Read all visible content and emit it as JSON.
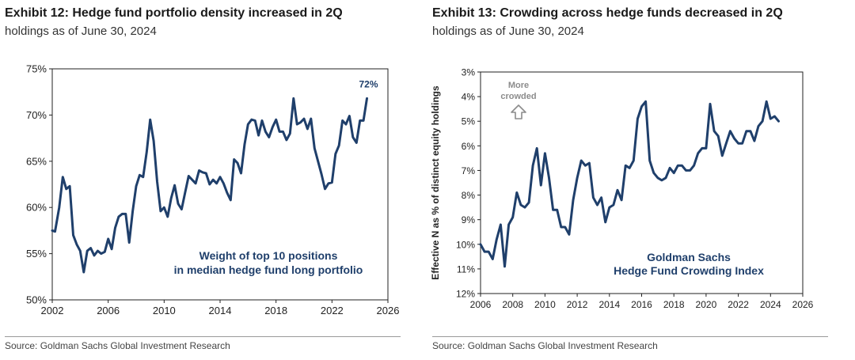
{
  "colors": {
    "line": "#1f3f6b",
    "annotation": "#1f3f6b",
    "hint": "#8c8c8c",
    "axis": "#222222"
  },
  "exhibits": [
    {
      "title": "Exhibit 12: Hedge fund portfolio density increased in 2Q",
      "subtitle": "holdings as of June 30, 2024",
      "source": "Source: Goldman Sachs Global Investment Research"
    },
    {
      "title": "Exhibit 13: Crowding across hedge funds decreased in 2Q",
      "subtitle": "holdings as of June 30, 2024",
      "source": "Source: Goldman Sachs Global Investment Research"
    }
  ],
  "chart_data": [
    {
      "type": "line",
      "xlim": [
        2002,
        2026
      ],
      "x_ticks": [
        2002,
        2006,
        2010,
        2014,
        2018,
        2022,
        2026
      ],
      "x_tick_labels": [
        "2002",
        "2006",
        "2010",
        "2014",
        "2018",
        "2022",
        "2026"
      ],
      "ylim": [
        50,
        75
      ],
      "y_ticks": [
        50,
        55,
        60,
        65,
        70,
        75
      ],
      "y_tick_labels": [
        "50%",
        "55%",
        "60%",
        "65%",
        "70%",
        "75%"
      ],
      "ylabel": "",
      "end_label": "72%",
      "annotation": [
        "Weight of top 10 positions",
        "in median hedge fund long portfolio"
      ],
      "series": [
        {
          "x": [
            2002.0,
            2002.2,
            2002.5,
            2002.75,
            2003.0,
            2003.25,
            2003.5,
            2003.75,
            2004.0,
            2004.25,
            2004.5,
            2004.75,
            2005.0,
            2005.25,
            2005.5,
            2005.75,
            2006.0,
            2006.25,
            2006.5,
            2006.75,
            2007.0,
            2007.25,
            2007.5,
            2007.75,
            2008.0,
            2008.25,
            2008.5,
            2008.75,
            2009.0,
            2009.25,
            2009.5,
            2009.75,
            2010.0,
            2010.25,
            2010.5,
            2010.75,
            2011.0,
            2011.25,
            2011.5,
            2011.75,
            2012.0,
            2012.25,
            2012.5,
            2012.75,
            2013.0,
            2013.25,
            2013.5,
            2013.75,
            2014.0,
            2014.25,
            2014.5,
            2014.75,
            2015.0,
            2015.25,
            2015.5,
            2015.75,
            2016.0,
            2016.25,
            2016.5,
            2016.75,
            2017.0,
            2017.25,
            2017.5,
            2017.75,
            2018.0,
            2018.25,
            2018.5,
            2018.75,
            2019.0,
            2019.25,
            2019.5,
            2019.75,
            2020.0,
            2020.25,
            2020.5,
            2020.75,
            2021.0,
            2021.25,
            2021.5,
            2021.75,
            2022.0,
            2022.25,
            2022.5,
            2022.75,
            2023.0,
            2023.25,
            2023.5,
            2023.75,
            2024.0,
            2024.25,
            2024.5
          ],
          "values": [
            57.5,
            57.4,
            60.0,
            63.3,
            62.0,
            62.3,
            57.0,
            56.0,
            55.3,
            53.0,
            55.3,
            55.6,
            54.8,
            55.3,
            55.0,
            55.2,
            56.6,
            55.5,
            57.8,
            59.0,
            59.3,
            59.3,
            56.2,
            59.6,
            62.3,
            63.5,
            63.3,
            66.0,
            69.5,
            67.2,
            62.8,
            59.6,
            60.0,
            59.0,
            61.0,
            62.4,
            60.4,
            59.8,
            61.6,
            63.4,
            63.0,
            62.6,
            64.0,
            63.8,
            63.7,
            62.5,
            63.0,
            62.6,
            63.3,
            62.6,
            61.6,
            60.8,
            65.2,
            64.8,
            63.7,
            66.8,
            69.0,
            69.5,
            69.4,
            67.8,
            69.4,
            68.2,
            67.6,
            68.7,
            69.5,
            68.2,
            68.2,
            67.3,
            68.0,
            71.8,
            69.0,
            69.2,
            69.6,
            68.5,
            69.6,
            66.4,
            65.0,
            63.6,
            62.0,
            62.6,
            62.7,
            65.8,
            66.7,
            69.4,
            69.0,
            69.9,
            67.6,
            67.0,
            69.4,
            69.4,
            71.8
          ]
        }
      ]
    },
    {
      "type": "line",
      "xlim": [
        2006,
        2026
      ],
      "x_ticks": [
        2006,
        2008,
        2010,
        2012,
        2014,
        2016,
        2018,
        2020,
        2022,
        2024,
        2026
      ],
      "x_tick_labels": [
        "2006",
        "2008",
        "2010",
        "2012",
        "2014",
        "2016",
        "2018",
        "2020",
        "2022",
        "2024",
        "2026"
      ],
      "ylim": [
        3,
        12
      ],
      "y_inverted": true,
      "y_ticks": [
        3,
        4,
        5,
        6,
        7,
        8,
        9,
        10,
        11,
        12
      ],
      "y_tick_labels": [
        "3%",
        "4%",
        "5%",
        "6%",
        "7%",
        "8%",
        "9%",
        "10%",
        "11%",
        "12%"
      ],
      "ylabel": "Effective N as % of distinct equity holdings",
      "hint": [
        "More",
        "crowded"
      ],
      "annotation": [
        "Goldman Sachs",
        "Hedge Fund Crowding Index"
      ],
      "series": [
        {
          "x": [
            2006.0,
            2006.25,
            2006.5,
            2006.75,
            2007.0,
            2007.25,
            2007.5,
            2007.75,
            2008.0,
            2008.25,
            2008.5,
            2008.75,
            2009.0,
            2009.25,
            2009.5,
            2009.75,
            2010.0,
            2010.25,
            2010.5,
            2010.75,
            2011.0,
            2011.25,
            2011.5,
            2011.75,
            2012.0,
            2012.25,
            2012.5,
            2012.75,
            2013.0,
            2013.25,
            2013.5,
            2013.75,
            2014.0,
            2014.25,
            2014.5,
            2014.75,
            2015.0,
            2015.25,
            2015.5,
            2015.75,
            2016.0,
            2016.25,
            2016.5,
            2016.75,
            2017.0,
            2017.25,
            2017.5,
            2017.75,
            2018.0,
            2018.25,
            2018.5,
            2018.75,
            2019.0,
            2019.25,
            2019.5,
            2019.75,
            2020.0,
            2020.25,
            2020.5,
            2020.75,
            2021.0,
            2021.25,
            2021.5,
            2021.75,
            2022.0,
            2022.25,
            2022.5,
            2022.75,
            2023.0,
            2023.25,
            2023.5,
            2023.75,
            2024.0,
            2024.25,
            2024.5
          ],
          "values": [
            10.0,
            10.3,
            10.3,
            10.6,
            9.8,
            9.2,
            10.9,
            9.2,
            8.9,
            7.9,
            8.4,
            8.5,
            8.3,
            6.8,
            6.1,
            7.6,
            6.3,
            7.3,
            8.6,
            8.6,
            9.3,
            9.3,
            9.6,
            8.2,
            7.3,
            6.6,
            6.8,
            6.7,
            8.1,
            8.4,
            8.1,
            9.1,
            8.5,
            8.4,
            7.8,
            8.2,
            6.8,
            6.9,
            6.6,
            4.9,
            4.4,
            4.2,
            6.6,
            7.1,
            7.3,
            7.4,
            7.3,
            6.9,
            7.1,
            6.8,
            6.8,
            7.0,
            7.0,
            6.8,
            6.3,
            6.1,
            6.1,
            4.3,
            5.4,
            5.6,
            6.4,
            5.9,
            5.4,
            5.7,
            5.9,
            5.9,
            5.4,
            5.4,
            5.8,
            5.2,
            5.0,
            4.2,
            4.9,
            4.8,
            5.0
          ]
        }
      ]
    }
  ]
}
